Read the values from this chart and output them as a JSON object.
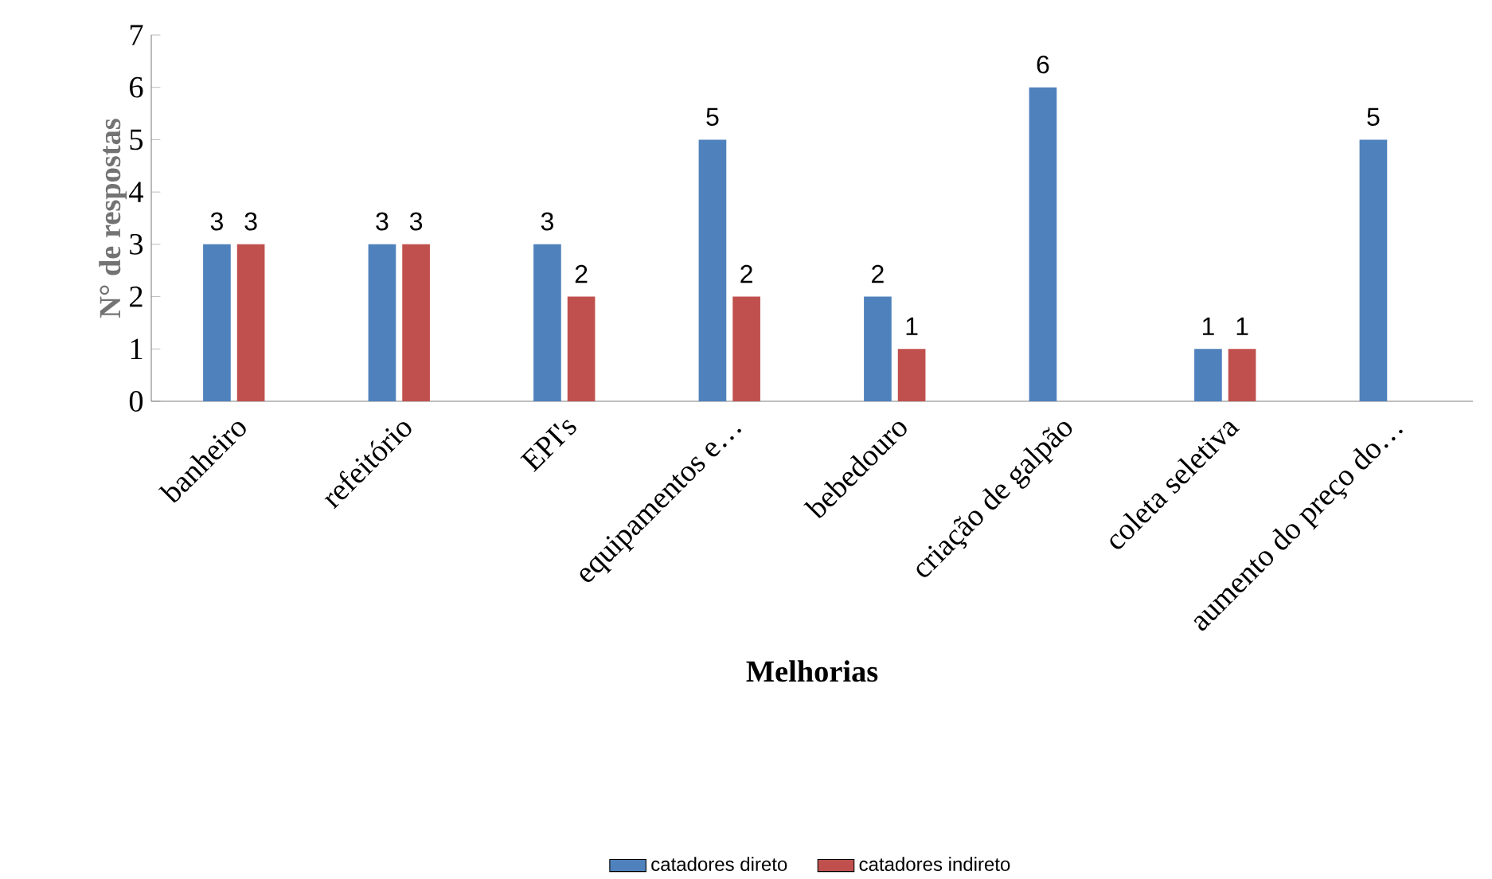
{
  "chart_data": {
    "type": "bar",
    "xlabel": "Melhorias",
    "ylabel": "N° de respostas",
    "categories": [
      "banheiro",
      "refeitório",
      "EPI's",
      "equipamentos e…",
      "bebedouro",
      "criação de galpão",
      "coleta seletiva",
      "aumento do preço do…"
    ],
    "series": [
      {
        "name": "catadores direto",
        "color": "#4f81bd",
        "values": [
          3,
          3,
          3,
          5,
          2,
          6,
          1,
          5
        ]
      },
      {
        "name": "catadores indireto",
        "color": "#c0504d",
        "values": [
          3,
          3,
          2,
          2,
          1,
          null,
          1,
          null
        ]
      }
    ],
    "ylim": [
      0,
      7
    ],
    "yticks": [
      0,
      1,
      2,
      3,
      4,
      5,
      6,
      7
    ],
    "data_labels": true,
    "legend": "bottom"
  }
}
